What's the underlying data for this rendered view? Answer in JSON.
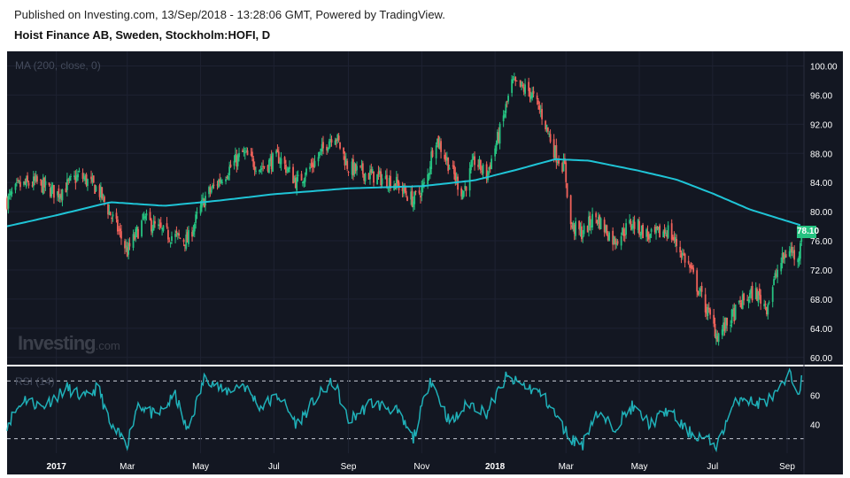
{
  "header": {
    "published": "Published on Investing.com, 13/Sep/2018 - 13:28:06 GMT, Powered by TradingView.",
    "instrument": "Hoist Finance AB, Sweden, Stockholm:HOFI, D"
  },
  "indicator_label": "MA (200, close, 0)",
  "rsi_label": "RSI (14)",
  "logo": {
    "main": "Investing",
    "suffix": ".com"
  },
  "last_price_label": "78.10",
  "colors": {
    "background": "#131722",
    "up": "#26c281",
    "down": "#f0625a",
    "ma": "#1fc4d6",
    "rsi": "#1fb0b8",
    "grid": "#1e2232",
    "axis_text": "#ffffff"
  },
  "chart_data": [
    {
      "type": "candlestick",
      "title": "Hoist Finance AB, Sweden, Stockholm:HOFI, D",
      "ylim": [
        59,
        102
      ],
      "y_ticks": [
        "60.00",
        "64.00",
        "68.00",
        "72.00",
        "76.00",
        "80.00",
        "84.00",
        "88.00",
        "92.00",
        "96.00",
        "100.00"
      ],
      "x_ticks": [
        "2017",
        "Mar",
        "May",
        "Jul",
        "Sep",
        "Nov",
        "2018",
        "Mar",
        "May",
        "Jul",
        "Sep"
      ],
      "close_path": [
        [
          "2016-11-21",
          81.5
        ],
        [
          "2016-12-01",
          83.5
        ],
        [
          "2016-12-15",
          84.0
        ],
        [
          "2017-01-02",
          82.5
        ],
        [
          "2017-01-20",
          85.0
        ],
        [
          "2017-02-05",
          83.0
        ],
        [
          "2017-02-20",
          78.0
        ],
        [
          "2017-03-01",
          74.5
        ],
        [
          "2017-03-15",
          79.0
        ],
        [
          "2017-04-01",
          77.0
        ],
        [
          "2017-04-20",
          76.0
        ],
        [
          "2017-05-05",
          82.0
        ],
        [
          "2017-05-20",
          85.0
        ],
        [
          "2017-06-05",
          88.0
        ],
        [
          "2017-06-20",
          86.0
        ],
        [
          "2017-07-05",
          87.5
        ],
        [
          "2017-07-20",
          84.0
        ],
        [
          "2017-08-05",
          87.0
        ],
        [
          "2017-08-20",
          91.0
        ],
        [
          "2017-09-01",
          86.0
        ],
        [
          "2017-09-20",
          85.0
        ],
        [
          "2017-10-10",
          84.0
        ],
        [
          "2017-10-25",
          81.5
        ],
        [
          "2017-11-05",
          84.0
        ],
        [
          "2017-11-12",
          90.5
        ],
        [
          "2017-11-25",
          86.0
        ],
        [
          "2017-12-05",
          82.5
        ],
        [
          "2017-12-15",
          87.0
        ],
        [
          "2017-12-25",
          85.0
        ],
        [
          "2018-01-05",
          91.0
        ],
        [
          "2018-01-15",
          97.5
        ],
        [
          "2018-01-30",
          96.5
        ],
        [
          "2018-02-10",
          93.0
        ],
        [
          "2018-02-20",
          88.0
        ],
        [
          "2018-02-28",
          86.0
        ],
        [
          "2018-03-05",
          78.0
        ],
        [
          "2018-03-15",
          77.0
        ],
        [
          "2018-03-25",
          79.5
        ],
        [
          "2018-04-10",
          76.0
        ],
        [
          "2018-04-25",
          78.5
        ],
        [
          "2018-05-10",
          76.5
        ],
        [
          "2018-05-25",
          77.5
        ],
        [
          "2018-06-10",
          73.0
        ],
        [
          "2018-06-25",
          67.0
        ],
        [
          "2018-07-05",
          63.0
        ],
        [
          "2018-07-15",
          65.0
        ],
        [
          "2018-07-25",
          67.5
        ],
        [
          "2018-08-05",
          69.0
        ],
        [
          "2018-08-15",
          67.0
        ],
        [
          "2018-08-25",
          72.5
        ],
        [
          "2018-09-03",
          75.0
        ],
        [
          "2018-09-10",
          73.0
        ],
        [
          "2018-09-13",
          78.1
        ]
      ],
      "last_close": 78.1,
      "series": [
        {
          "name": "MA (200, close, 0)",
          "type": "line",
          "points": [
            [
              "2016-11-21",
              78.0
            ],
            [
              "2017-01-01",
              79.5
            ],
            [
              "2017-02-15",
              81.3
            ],
            [
              "2017-04-01",
              80.8
            ],
            [
              "2017-05-15",
              81.5
            ],
            [
              "2017-07-01",
              82.4
            ],
            [
              "2017-09-01",
              83.2
            ],
            [
              "2017-11-01",
              83.5
            ],
            [
              "2017-12-15",
              84.3
            ],
            [
              "2018-01-20",
              85.8
            ],
            [
              "2018-02-20",
              87.2
            ],
            [
              "2018-03-20",
              87.0
            ],
            [
              "2018-05-01",
              85.6
            ],
            [
              "2018-06-01",
              84.4
            ],
            [
              "2018-07-01",
              82.5
            ],
            [
              "2018-08-01",
              80.3
            ],
            [
              "2018-09-13",
              78.1
            ]
          ]
        }
      ]
    },
    {
      "type": "line",
      "title": "RSI (14)",
      "ylim": [
        20,
        80
      ],
      "y_ticks": [
        "40",
        "60"
      ],
      "levels": [
        30,
        70
      ],
      "series": [
        {
          "name": "RSI (14)",
          "points": [
            [
              "2016-11-21",
              40
            ],
            [
              "2016-12-05",
              58
            ],
            [
              "2016-12-20",
              52
            ],
            [
              "2017-01-10",
              65
            ],
            [
              "2017-01-25",
              58
            ],
            [
              "2017-02-05",
              66
            ],
            [
              "2017-02-15",
              38
            ],
            [
              "2017-03-01",
              27
            ],
            [
              "2017-03-10",
              55
            ],
            [
              "2017-03-25",
              45
            ],
            [
              "2017-04-10",
              60
            ],
            [
              "2017-04-20",
              35
            ],
            [
              "2017-05-05",
              74
            ],
            [
              "2017-05-20",
              62
            ],
            [
              "2017-06-05",
              68
            ],
            [
              "2017-06-20",
              52
            ],
            [
              "2017-07-05",
              60
            ],
            [
              "2017-07-20",
              40
            ],
            [
              "2017-08-05",
              58
            ],
            [
              "2017-08-20",
              70
            ],
            [
              "2017-09-01",
              42
            ],
            [
              "2017-09-20",
              55
            ],
            [
              "2017-10-10",
              50
            ],
            [
              "2017-10-25",
              30
            ],
            [
              "2017-11-08",
              72
            ],
            [
              "2017-11-25",
              40
            ],
            [
              "2017-12-10",
              55
            ],
            [
              "2017-12-25",
              48
            ],
            [
              "2018-01-10",
              72
            ],
            [
              "2018-01-30",
              65
            ],
            [
              "2018-02-10",
              60
            ],
            [
              "2018-02-25",
              40
            ],
            [
              "2018-03-05",
              30
            ],
            [
              "2018-03-15",
              26
            ],
            [
              "2018-03-25",
              48
            ],
            [
              "2018-04-10",
              38
            ],
            [
              "2018-04-25",
              52
            ],
            [
              "2018-05-10",
              40
            ],
            [
              "2018-05-25",
              50
            ],
            [
              "2018-06-10",
              35
            ],
            [
              "2018-06-25",
              30
            ],
            [
              "2018-07-05",
              25
            ],
            [
              "2018-07-15",
              48
            ],
            [
              "2018-07-25",
              60
            ],
            [
              "2018-08-05",
              54
            ],
            [
              "2018-08-15",
              56
            ],
            [
              "2018-08-25",
              62
            ],
            [
              "2018-09-03",
              74
            ],
            [
              "2018-09-10",
              63
            ],
            [
              "2018-09-13",
              70
            ]
          ]
        }
      ]
    }
  ]
}
